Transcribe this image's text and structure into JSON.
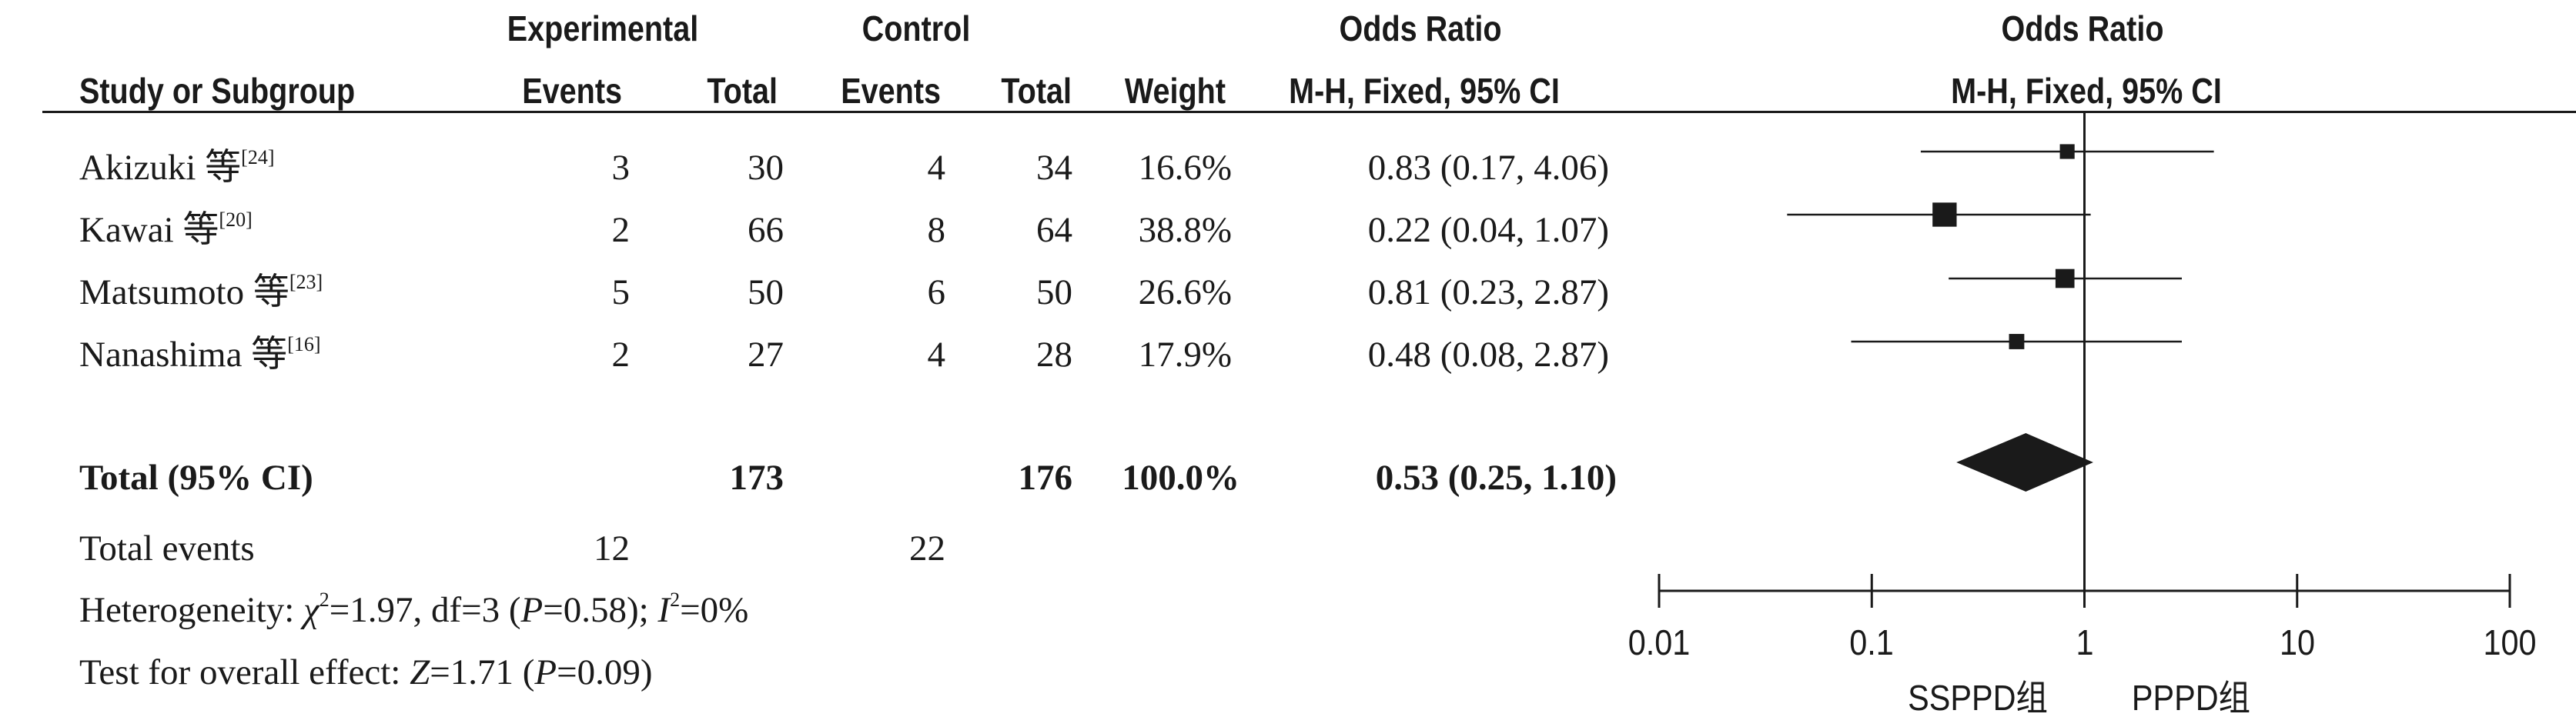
{
  "header": {
    "experimental": "Experimental",
    "control": "Control",
    "odds_ratio": "Odds Ratio",
    "odds_ratio_plot": "Odds Ratio",
    "study": "Study or Subgroup",
    "exp_events": "Events",
    "exp_total": "Total",
    "ctl_events": "Events",
    "ctl_total": "Total",
    "weight": "Weight",
    "method": "M-H, Fixed, 95% CI",
    "method_plot": "M-H, Fixed, 95% CI"
  },
  "studies": [
    {
      "name": "Akizuki 等",
      "ref": "[24]",
      "exp_events": "3",
      "exp_total": "30",
      "ctl_events": "4",
      "ctl_total": "34",
      "weight": "16.6%",
      "ci_text": "0.83 (0.17, 4.06)"
    },
    {
      "name": "Kawai 等",
      "ref": "[20]",
      "exp_events": "2",
      "exp_total": "66",
      "ctl_events": "8",
      "ctl_total": "64",
      "weight": "38.8%",
      "ci_text": "0.22 (0.04, 1.07)"
    },
    {
      "name": "Matsumoto 等",
      "ref": "[23]",
      "exp_events": "5",
      "exp_total": "50",
      "ctl_events": "6",
      "ctl_total": "50",
      "weight": "26.6%",
      "ci_text": "0.81 (0.23, 2.87)"
    },
    {
      "name": "Nanashima 等",
      "ref": "[16]",
      "exp_events": "2",
      "exp_total": "27",
      "ctl_events": "4",
      "ctl_total": "28",
      "weight": "17.9%",
      "ci_text": "0.48 (0.08, 2.87)"
    }
  ],
  "total": {
    "label": "Total (95% CI)",
    "exp_total": "173",
    "ctl_total": "176",
    "weight": "100.0%",
    "ci_text": "0.53 (0.25, 1.10)"
  },
  "total_events": {
    "label": "Total events",
    "exp": "12",
    "ctl": "22"
  },
  "heterogeneity": {
    "prefix": "Heterogeneity: ",
    "chi_symbol": "χ",
    "chi_value": "=1.97, df=3 (",
    "p_symbol": "P",
    "p_value": "=0.58); ",
    "i_symbol": "I",
    "i_value": "=0%"
  },
  "overall": {
    "prefix": "Test for overall effect: ",
    "z_symbol": "Z",
    "z_value": "=1.71 (",
    "p_symbol": "P",
    "p_value": "=0.09)"
  },
  "chart_data": {
    "type": "forest",
    "scale": "log",
    "xlim": [
      0.01,
      100
    ],
    "ticks": [
      0.01,
      0.1,
      1,
      10,
      100
    ],
    "tick_labels": [
      "0.01",
      "0.1",
      "1",
      "10",
      "100"
    ],
    "left_label": "SSPPD组",
    "right_label": "PPPD组",
    "series": [
      {
        "or": 0.83,
        "lo": 0.17,
        "hi": 4.06,
        "weight": 16.6
      },
      {
        "or": 0.22,
        "lo": 0.04,
        "hi": 1.07,
        "weight": 38.8
      },
      {
        "or": 0.81,
        "lo": 0.23,
        "hi": 2.87,
        "weight": 26.6
      },
      {
        "or": 0.48,
        "lo": 0.08,
        "hi": 2.87,
        "weight": 17.9
      }
    ],
    "pooled": {
      "or": 0.53,
      "lo": 0.25,
      "hi": 1.1
    },
    "colors": {
      "ink": "#1a1a1a"
    }
  }
}
